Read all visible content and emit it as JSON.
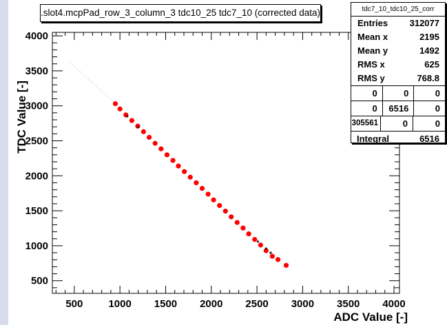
{
  "chart_data": {
    "type": "scatter",
    "title": ".slot4.mcpPad_row_3_column_3 tdc10_25 tdc7_10 (corrected data)",
    "xlabel": "ADC Value [-]",
    "ylabel": "TDC Value [-]",
    "xlim": [
      260,
      4060
    ],
    "ylim": [
      320,
      4050
    ],
    "xticks": [
      500,
      1000,
      1500,
      2000,
      2500,
      3000,
      3500,
      4000
    ],
    "yticks": [
      500,
      1000,
      1500,
      2000,
      2500,
      3000,
      3500,
      4000
    ],
    "series": [
      {
        "marker": "red-circle",
        "color": "#ff0000",
        "x": [
          950,
          1000,
          1065,
          1130,
          1195,
          1258,
          1320,
          1385,
          1450,
          1515,
          1580,
          1640,
          1705,
          1770,
          1835,
          1900,
          1965,
          2025,
          2090,
          2155,
          2218,
          2283,
          2348,
          2410,
          2475,
          2540,
          2600,
          2668,
          2730,
          2820
        ],
        "y": [
          3030,
          2955,
          2870,
          2790,
          2710,
          2630,
          2550,
          2465,
          2385,
          2300,
          2220,
          2140,
          2060,
          1980,
          1900,
          1820,
          1738,
          1655,
          1575,
          1495,
          1413,
          1333,
          1253,
          1170,
          1090,
          1010,
          930,
          850,
          803,
          720
        ]
      },
      {
        "marker": "dark-dot",
        "color": "#1a1a1a",
        "x": [
          1080,
          1200,
          2510,
          2600,
          2650
        ],
        "y": [
          2850,
          2700,
          1060,
          960,
          900
        ]
      }
    ],
    "faint_trend": {
      "x": [
        450,
        950
      ],
      "y": [
        3620,
        3030
      ]
    },
    "grid": false,
    "legend": "none"
  },
  "stats": {
    "name": "tdc7_10_tdc10_25_corr",
    "rows": [
      {
        "label": "Entries",
        "value": "312077"
      },
      {
        "label": "Mean x",
        "value": "2195"
      },
      {
        "label": "Mean y",
        "value": "1492"
      },
      {
        "label": "RMS x",
        "value": "625"
      },
      {
        "label": "RMS y",
        "value": "768.8"
      }
    ],
    "grid": [
      [
        "0",
        "0",
        "0"
      ],
      [
        "0",
        "6516",
        "0"
      ],
      [
        "305561",
        "0",
        "0"
      ]
    ],
    "integral_label": "Integral",
    "integral_value": "6516"
  },
  "colors": {
    "frame": "#000000",
    "marker": "#ff0000",
    "left_strip": "#d9dcec"
  }
}
